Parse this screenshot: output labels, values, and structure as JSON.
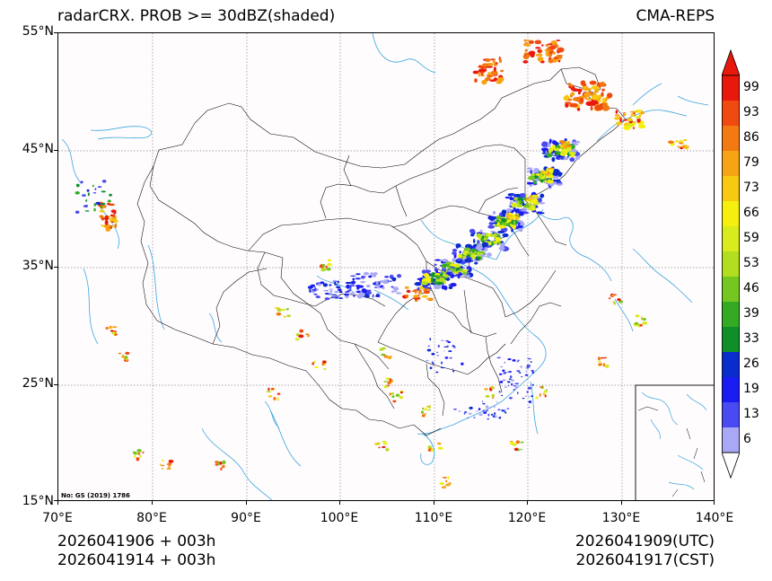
{
  "title": {
    "left": "radarCRX. PROB >= 30dBZ(shaded)",
    "right": "CMA-REPS"
  },
  "map": {
    "lon_range": [
      70,
      140
    ],
    "lat_range": [
      15,
      55
    ],
    "lon_ticks": [
      "70°E",
      "80°E",
      "90°E",
      "100°E",
      "110°E",
      "120°E",
      "130°E",
      "140°E"
    ],
    "lat_ticks": [
      "55°N",
      "45°N",
      "35°N",
      "25°N",
      "15°N"
    ],
    "map_note": "No: GS (2019) 1786"
  },
  "colorbar": {
    "labels": [
      "99",
      "93",
      "86",
      "79",
      "73",
      "66",
      "59",
      "53",
      "46",
      "39",
      "33",
      "26",
      "19",
      "13",
      "6"
    ],
    "colors": [
      "#e8190c",
      "#f04a10",
      "#f37a12",
      "#f6a413",
      "#f7c911",
      "#f5ef0d",
      "#d8eb1c",
      "#b3de20",
      "#76c622",
      "#34aa24",
      "#0f8f2a",
      "#0a2ccc",
      "#1a1af2",
      "#4a4af2",
      "#a8a8f5"
    ],
    "over_color": "#e8190c",
    "under_color": "#ffffff"
  },
  "footer": {
    "left_line1": "2026041906  +  003h",
    "left_line2": "2026041914  +  003h",
    "right_line1": "2026041909(UTC)",
    "right_line2": "2026041917(CST)"
  }
}
